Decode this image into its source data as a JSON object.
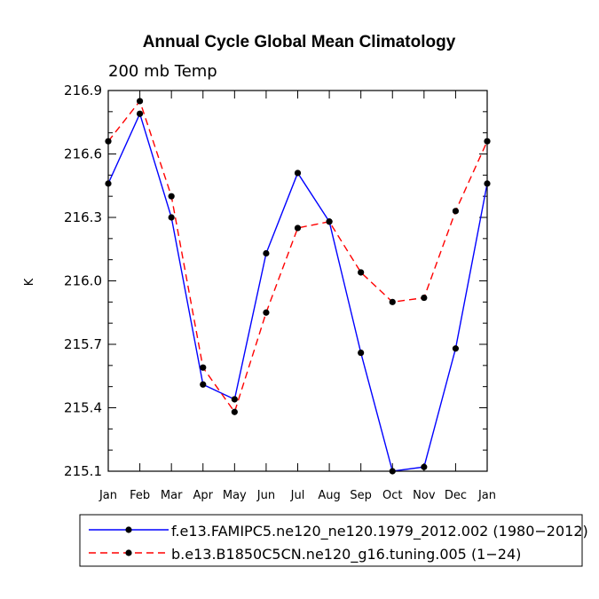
{
  "chart_data": {
    "type": "line",
    "title": "Annual Cycle Global Mean Climatology",
    "subtitle": "200 mb Temp",
    "xlabel": "",
    "ylabel": "K",
    "categories": [
      "Jan",
      "Feb",
      "Mar",
      "Apr",
      "May",
      "Jun",
      "Jul",
      "Aug",
      "Sep",
      "Oct",
      "Nov",
      "Dec",
      "Jan"
    ],
    "ylim": [
      215.1,
      216.9
    ],
    "yticks": [
      "216.9",
      "216.6",
      "216.3",
      "216.0",
      "215.7",
      "215.4",
      "215.1"
    ],
    "series": [
      {
        "name": "f.e13.FAMIPC5.ne120_ne120.1979_2012.002 (1980-2012)",
        "color": "#0000ff",
        "style": "solid",
        "values": [
          216.46,
          216.79,
          216.3,
          215.51,
          215.44,
          216.13,
          216.51,
          216.28,
          215.66,
          215.1,
          215.12,
          215.68,
          216.46
        ]
      },
      {
        "name": "b.e13.B1850C5CN.ne120_g16.tuning.005 (1-24)",
        "color": "#ff0000",
        "style": "dashed",
        "values": [
          216.66,
          216.85,
          216.4,
          215.59,
          215.38,
          215.85,
          216.25,
          216.28,
          216.04,
          215.9,
          215.92,
          216.33,
          216.66
        ]
      }
    ],
    "legend": {
      "position": "bottom",
      "entries": [
        "f.e13.FAMIPC5.ne120_ne120.1979_2012.002 (1980−2012)",
        "b.e13.B1850C5CN.ne120_g16.tuning.005 (1−24)"
      ]
    }
  }
}
